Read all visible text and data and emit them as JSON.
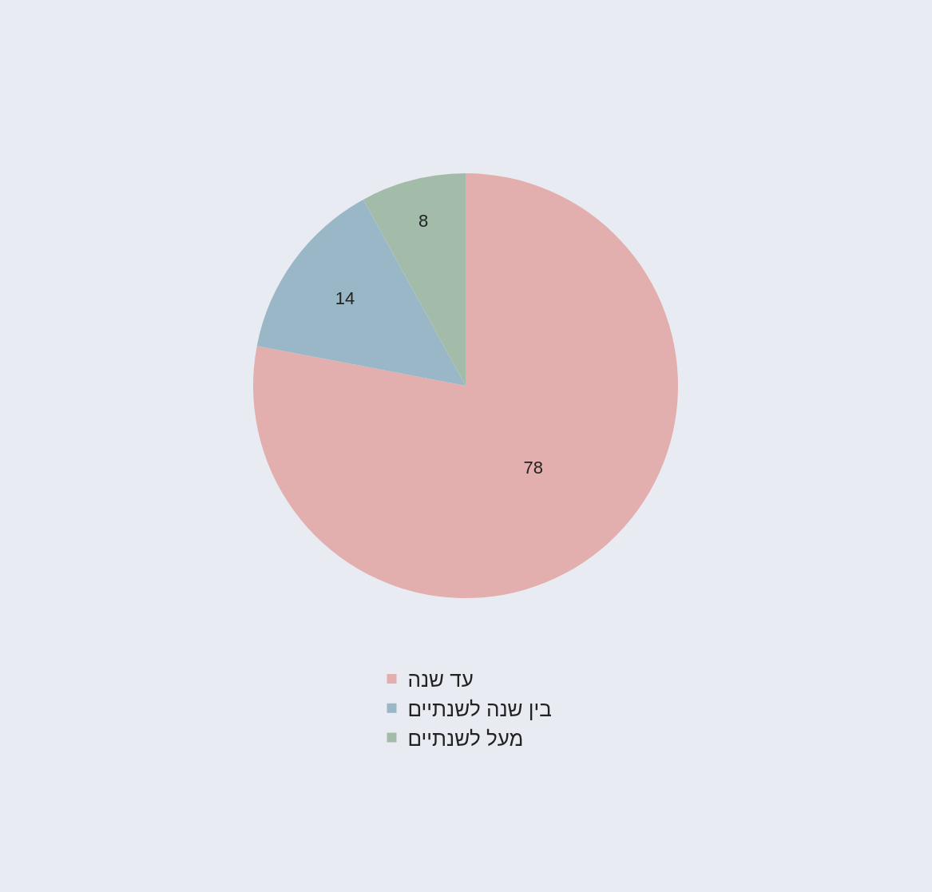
{
  "chart_data": {
    "type": "pie",
    "categories": [
      "עד שנה",
      "בין שנה לשנתיים",
      "מעל לשנתיים"
    ],
    "values": [
      78,
      14,
      8
    ],
    "colors": [
      "#e3aeae",
      "#9ab7c8",
      "#a3bba9"
    ],
    "data_labels": true,
    "legend": "bottom"
  }
}
